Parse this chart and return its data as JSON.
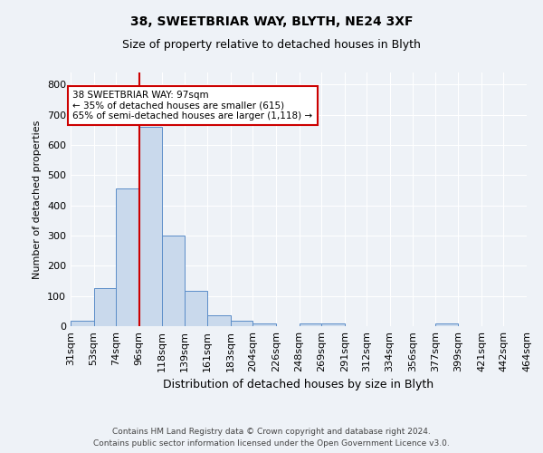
{
  "title": "38, SWEETBRIAR WAY, BLYTH, NE24 3XF",
  "subtitle": "Size of property relative to detached houses in Blyth",
  "xlabel": "Distribution of detached houses by size in Blyth",
  "ylabel": "Number of detached properties",
  "bin_labels": [
    "31sqm",
    "53sqm",
    "74sqm",
    "96sqm",
    "118sqm",
    "139sqm",
    "161sqm",
    "183sqm",
    "204sqm",
    "226sqm",
    "248sqm",
    "269sqm",
    "291sqm",
    "312sqm",
    "334sqm",
    "356sqm",
    "377sqm",
    "399sqm",
    "421sqm",
    "442sqm",
    "464sqm"
  ],
  "bin_edges": [
    31,
    53,
    74,
    96,
    118,
    139,
    161,
    183,
    204,
    226,
    248,
    269,
    291,
    312,
    334,
    356,
    377,
    399,
    421,
    442,
    464
  ],
  "bar_heights": [
    18,
    125,
    457,
    660,
    300,
    117,
    35,
    17,
    10,
    0,
    10,
    10,
    0,
    0,
    0,
    0,
    10,
    0,
    0,
    0
  ],
  "bar_color": "#c9d9ec",
  "bar_edge_color": "#5b8dc8",
  "red_line_x": 96,
  "annotation_text": "38 SWEETBRIAR WAY: 97sqm\n← 35% of detached houses are smaller (615)\n65% of semi-detached houses are larger (1,118) →",
  "annotation_box_color": "#ffffff",
  "annotation_box_edge": "#cc0000",
  "red_line_color": "#cc0000",
  "ylim": [
    0,
    840
  ],
  "yticks": [
    0,
    100,
    200,
    300,
    400,
    500,
    600,
    700,
    800
  ],
  "background_color": "#eef2f7",
  "grid_color": "#ffffff",
  "footer_line1": "Contains HM Land Registry data © Crown copyright and database right 2024.",
  "footer_line2": "Contains public sector information licensed under the Open Government Licence v3.0."
}
